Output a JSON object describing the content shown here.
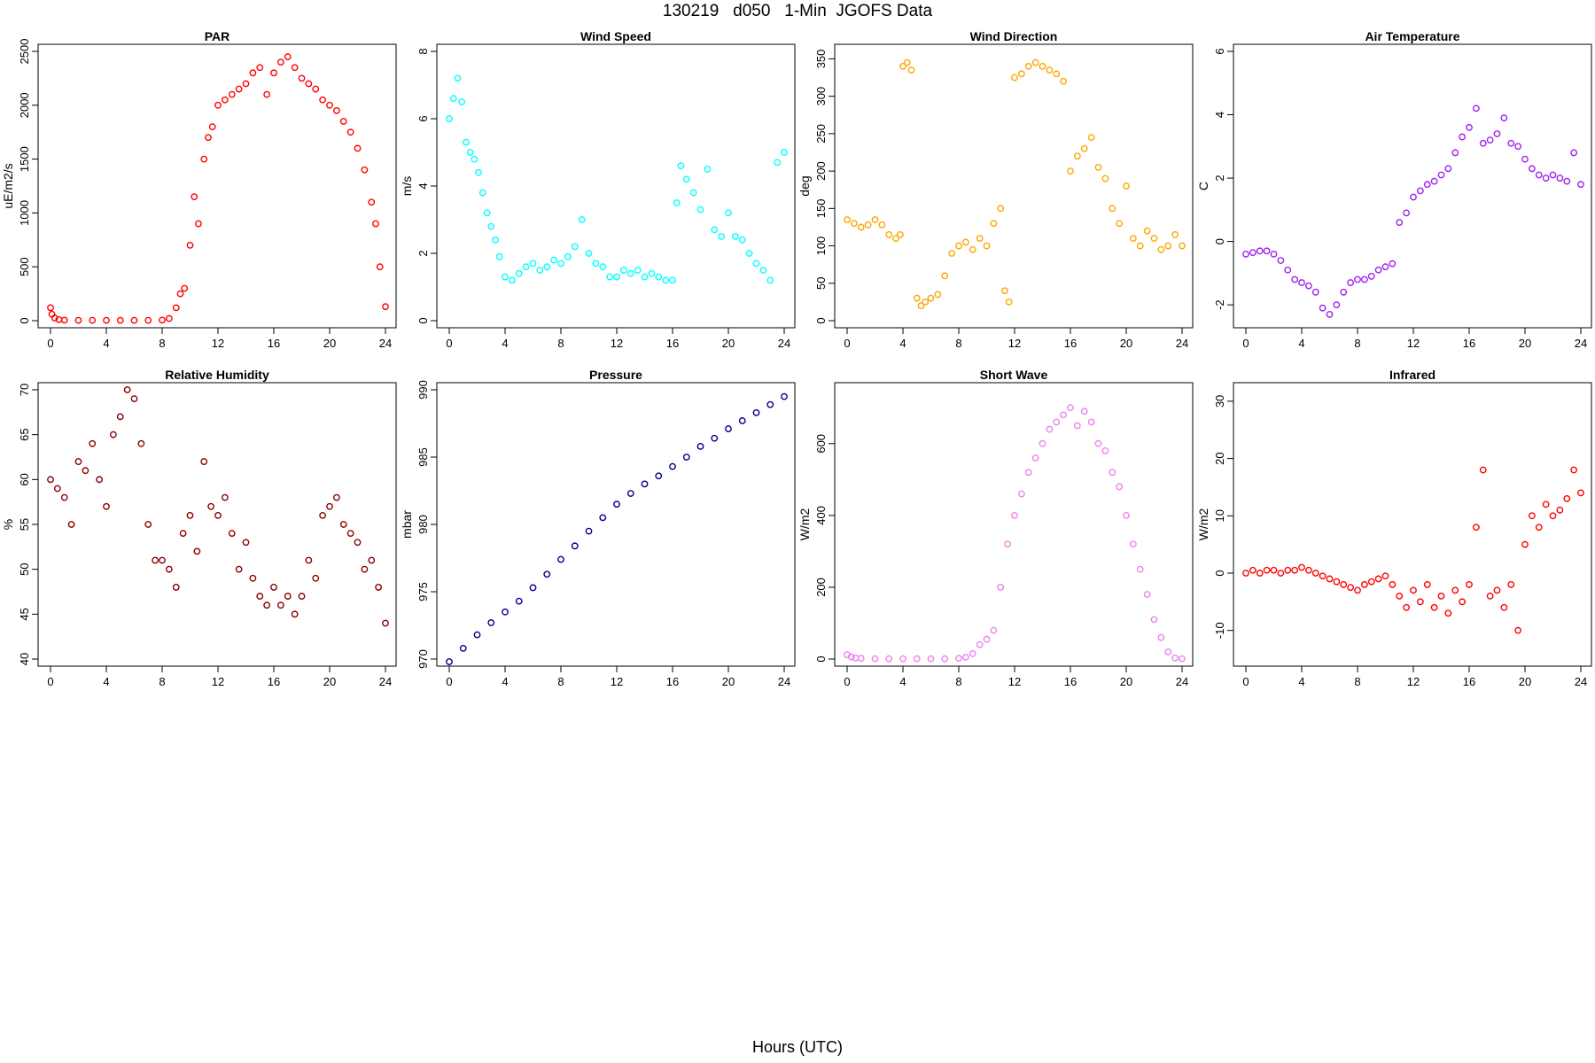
{
  "title": "130219   d050   1-Min  JGOFS Data",
  "xlabel": "Hours (UTC)",
  "chart_data": [
    {
      "type": "scatter",
      "title": "PAR",
      "ylabel": "uE/m2/s",
      "color": "#ff0000",
      "xlim": [
        0,
        24
      ],
      "ylim": [
        0,
        2500
      ],
      "xticks": [
        0,
        4,
        8,
        12,
        16,
        20,
        24
      ],
      "xtick_labels": [
        "0",
        "4",
        "8",
        "12",
        "16",
        "20",
        "24"
      ],
      "yticks": [
        0,
        500,
        1000,
        1500,
        2000,
        2500
      ],
      "ytick_labels": [
        "0",
        "500",
        "1000",
        "1500",
        "2000",
        "2500"
      ],
      "x": [
        0,
        0.1,
        0.3,
        0.6,
        1,
        2,
        3,
        4,
        5,
        6,
        7,
        8,
        8.5,
        9,
        9.3,
        9.6,
        10,
        10.3,
        10.6,
        11,
        11.3,
        11.6,
        12,
        12.5,
        13,
        13.5,
        14,
        14.5,
        15,
        15.5,
        16,
        16.5,
        17,
        17.5,
        18,
        18.5,
        19,
        19.5,
        20,
        20.5,
        21,
        21.5,
        22,
        22.5,
        23,
        23.3,
        23.6,
        24
      ],
      "y": [
        120,
        60,
        25,
        10,
        5,
        3,
        3,
        3,
        3,
        3,
        3,
        5,
        20,
        120,
        250,
        300,
        700,
        1150,
        900,
        1500,
        1700,
        1800,
        2000,
        2050,
        2100,
        2150,
        2200,
        2300,
        2350,
        2100,
        2300,
        2400,
        2450,
        2350,
        2250,
        2200,
        2150,
        2050,
        2000,
        1950,
        1850,
        1750,
        1600,
        1400,
        1100,
        900,
        500,
        130
      ]
    },
    {
      "type": "scatter",
      "title": "Wind Speed",
      "ylabel": "m/s",
      "color": "#00ffff",
      "xlim": [
        0,
        24
      ],
      "ylim": [
        0,
        8
      ],
      "xticks": [
        0,
        4,
        8,
        12,
        16,
        20,
        24
      ],
      "xtick_labels": [
        "0",
        "4",
        "8",
        "12",
        "16",
        "20",
        "24"
      ],
      "yticks": [
        0,
        2,
        4,
        6,
        8
      ],
      "ytick_labels": [
        "0",
        "2",
        "4",
        "6",
        "8"
      ],
      "x": [
        0,
        0.3,
        0.6,
        0.9,
        1.2,
        1.5,
        1.8,
        2.1,
        2.4,
        2.7,
        3,
        3.3,
        3.6,
        4,
        4.5,
        5,
        5.5,
        6,
        6.5,
        7,
        7.5,
        8,
        8.5,
        9,
        9.5,
        10,
        10.5,
        11,
        11.5,
        12,
        12.5,
        13,
        13.5,
        14,
        14.5,
        15,
        15.5,
        16,
        16.3,
        16.6,
        17,
        17.5,
        18,
        18.5,
        19,
        19.5,
        20,
        20.5,
        21,
        21.5,
        22,
        22.5,
        23,
        23.5,
        24
      ],
      "y": [
        6,
        6.6,
        7.2,
        6.5,
        5.3,
        5,
        4.8,
        4.4,
        3.8,
        3.2,
        2.8,
        2.4,
        1.9,
        1.3,
        1.2,
        1.4,
        1.6,
        1.7,
        1.5,
        1.6,
        1.8,
        1.7,
        1.9,
        2.2,
        3,
        2,
        1.7,
        1.6,
        1.3,
        1.3,
        1.5,
        1.4,
        1.5,
        1.3,
        1.4,
        1.3,
        1.2,
        1.2,
        3.5,
        4.6,
        4.2,
        3.8,
        3.3,
        4.5,
        2.7,
        2.5,
        3.2,
        2.5,
        2.4,
        2,
        1.7,
        1.5,
        1.2,
        4.7,
        5
      ]
    },
    {
      "type": "scatter",
      "title": "Wind Direction",
      "ylabel": "deg",
      "color": "#ffa500",
      "xlim": [
        0,
        24
      ],
      "ylim": [
        0,
        360
      ],
      "xticks": [
        0,
        4,
        8,
        12,
        16,
        20,
        24
      ],
      "xtick_labels": [
        "0",
        "4",
        "8",
        "12",
        "16",
        "20",
        "24"
      ],
      "yticks": [
        0,
        50,
        100,
        150,
        200,
        250,
        300,
        350
      ],
      "ytick_labels": [
        "0",
        "50",
        "100",
        "150",
        "200",
        "250",
        "300",
        "350"
      ],
      "x": [
        0,
        0.5,
        1,
        1.5,
        2,
        2.5,
        3,
        3.5,
        3.8,
        4,
        4.3,
        4.6,
        5,
        5.3,
        5.6,
        6,
        6.5,
        7,
        7.5,
        8,
        8.5,
        9,
        9.5,
        10,
        10.5,
        11,
        11.3,
        11.6,
        12,
        12.5,
        13,
        13.5,
        14,
        14.5,
        15,
        15.5,
        16,
        16.5,
        17,
        17.5,
        18,
        18.5,
        19,
        19.5,
        20,
        20.5,
        21,
        21.5,
        22,
        22.5,
        23,
        23.5,
        24
      ],
      "y": [
        135,
        130,
        125,
        128,
        135,
        128,
        115,
        110,
        115,
        340,
        345,
        335,
        30,
        20,
        25,
        30,
        35,
        60,
        90,
        100,
        105,
        95,
        110,
        100,
        130,
        150,
        40,
        25,
        325,
        330,
        340,
        345,
        340,
        335,
        330,
        320,
        200,
        220,
        230,
        245,
        205,
        190,
        150,
        130,
        180,
        110,
        100,
        120,
        110,
        95,
        100,
        115,
        100
      ]
    },
    {
      "type": "scatter",
      "title": "Air Temperature",
      "ylabel": "C",
      "color": "#a020f0",
      "xlim": [
        0,
        24
      ],
      "ylim": [
        -2.5,
        6
      ],
      "xticks": [
        0,
        4,
        8,
        12,
        16,
        20,
        24
      ],
      "xtick_labels": [
        "0",
        "4",
        "8",
        "12",
        "16",
        "20",
        "24"
      ],
      "yticks": [
        -2,
        0,
        2,
        4,
        6
      ],
      "ytick_labels": [
        "-2",
        "0",
        "2",
        "4",
        "6"
      ],
      "x": [
        0,
        0.5,
        1,
        1.5,
        2,
        2.5,
        3,
        3.5,
        4,
        4.5,
        5,
        5.5,
        6,
        6.5,
        7,
        7.5,
        8,
        8.5,
        9,
        9.5,
        10,
        10.5,
        11,
        11.5,
        12,
        12.5,
        13,
        13.5,
        14,
        14.5,
        15,
        15.5,
        16,
        16.5,
        17,
        17.5,
        18,
        18.5,
        19,
        19.5,
        20,
        20.5,
        21,
        21.5,
        22,
        22.5,
        23,
        23.5,
        24
      ],
      "y": [
        -0.4,
        -0.35,
        -0.3,
        -0.3,
        -0.4,
        -0.6,
        -0.9,
        -1.2,
        -1.3,
        -1.4,
        -1.6,
        -2.1,
        -2.3,
        -2.0,
        -1.6,
        -1.3,
        -1.2,
        -1.2,
        -1.1,
        -0.9,
        -0.8,
        -0.7,
        0.6,
        0.9,
        1.4,
        1.6,
        1.8,
        1.9,
        2.1,
        2.3,
        2.8,
        3.3,
        3.6,
        4.2,
        3.1,
        3.2,
        3.4,
        3.9,
        3.1,
        3.0,
        2.6,
        2.3,
        2.1,
        2.0,
        2.1,
        2.0,
        1.9,
        2.8,
        1.8
      ]
    },
    {
      "type": "scatter",
      "title": "Relative Humidity",
      "ylabel": "%",
      "color": "#8b0000",
      "xlim": [
        0,
        24
      ],
      "ylim": [
        40,
        70
      ],
      "xticks": [
        0,
        4,
        8,
        12,
        16,
        20,
        24
      ],
      "xtick_labels": [
        "0",
        "4",
        "8",
        "12",
        "16",
        "20",
        "24"
      ],
      "yticks": [
        40,
        45,
        50,
        55,
        60,
        65,
        70
      ],
      "ytick_labels": [
        "40",
        "45",
        "50",
        "55",
        "60",
        "65",
        "70"
      ],
      "x": [
        0,
        0.5,
        1,
        1.5,
        2,
        2.5,
        3,
        3.5,
        4,
        4.5,
        5,
        5.5,
        6,
        6.5,
        7,
        7.5,
        8,
        8.5,
        9,
        9.5,
        10,
        10.5,
        11,
        11.5,
        12,
        12.5,
        13,
        13.5,
        14,
        14.5,
        15,
        15.5,
        16,
        16.5,
        17,
        17.5,
        18,
        18.5,
        19,
        19.5,
        20,
        20.5,
        21,
        21.5,
        22,
        22.5,
        23,
        23.5,
        24
      ],
      "y": [
        60,
        59,
        58,
        55,
        62,
        61,
        64,
        60,
        57,
        65,
        67,
        70,
        69,
        64,
        55,
        51,
        51,
        50,
        48,
        54,
        56,
        52,
        62,
        57,
        56,
        58,
        54,
        50,
        53,
        49,
        47,
        46,
        48,
        46,
        47,
        45,
        47,
        51,
        49,
        56,
        57,
        58,
        55,
        54,
        53,
        50,
        51,
        48,
        44
      ]
    },
    {
      "type": "scatter",
      "title": "Pressure",
      "ylabel": "mbar",
      "color": "#00008b",
      "xlim": [
        0,
        24
      ],
      "ylim": [
        970,
        990
      ],
      "xticks": [
        0,
        4,
        8,
        12,
        16,
        20,
        24
      ],
      "xtick_labels": [
        "0",
        "4",
        "8",
        "12",
        "16",
        "20",
        "24"
      ],
      "yticks": [
        970,
        975,
        980,
        985,
        990
      ],
      "ytick_labels": [
        "970",
        "975",
        "980",
        "985",
        "990"
      ],
      "x": [
        0,
        1,
        2,
        3,
        4,
        5,
        6,
        7,
        8,
        9,
        10,
        11,
        12,
        13,
        14,
        15,
        16,
        17,
        18,
        19,
        20,
        21,
        22,
        23,
        24
      ],
      "y": [
        969.8,
        970.8,
        971.8,
        972.7,
        973.5,
        974.3,
        975.3,
        976.3,
        977.4,
        978.4,
        979.5,
        980.5,
        981.5,
        982.3,
        983,
        983.6,
        984.3,
        985,
        985.8,
        986.4,
        987.1,
        987.7,
        988.3,
        988.9,
        989.5
      ]
    },
    {
      "type": "scatter",
      "title": "Short Wave",
      "ylabel": "W/m2",
      "color": "#ee82ee",
      "xlim": [
        0,
        24
      ],
      "ylim": [
        0,
        750
      ],
      "xticks": [
        0,
        4,
        8,
        12,
        16,
        20,
        24
      ],
      "xtick_labels": [
        "0",
        "4",
        "8",
        "12",
        "16",
        "20",
        "24"
      ],
      "yticks": [
        0,
        200,
        400,
        600
      ],
      "ytick_labels": [
        "0",
        "200",
        "400",
        "600"
      ],
      "x": [
        0,
        0.3,
        0.6,
        1,
        2,
        3,
        4,
        5,
        6,
        7,
        8,
        8.5,
        9,
        9.5,
        10,
        10.5,
        11,
        11.5,
        12,
        12.5,
        13,
        13.5,
        14,
        14.5,
        15,
        15.5,
        16,
        16.5,
        17,
        17.5,
        18,
        18.5,
        19,
        19.5,
        20,
        20.5,
        21,
        21.5,
        22,
        22.5,
        23,
        23.5,
        24
      ],
      "y": [
        12,
        6,
        3,
        2,
        1,
        1,
        1,
        1,
        1,
        1,
        2,
        5,
        15,
        40,
        55,
        80,
        200,
        320,
        400,
        460,
        520,
        560,
        600,
        640,
        660,
        680,
        700,
        650,
        690,
        660,
        600,
        580,
        520,
        480,
        400,
        320,
        250,
        180,
        110,
        60,
        20,
        3,
        1
      ]
    },
    {
      "type": "scatter",
      "title": "Infrared",
      "ylabel": "W/m2",
      "color": "#ff0000",
      "xlim": [
        0,
        24
      ],
      "ylim": [
        -15,
        32
      ],
      "xticks": [
        0,
        4,
        8,
        12,
        16,
        20,
        24
      ],
      "xtick_labels": [
        "0",
        "4",
        "8",
        "12",
        "16",
        "20",
        "24"
      ],
      "yticks": [
        -10,
        0,
        10,
        20,
        30
      ],
      "ytick_labels": [
        "-10",
        "0",
        "10",
        "20",
        "30"
      ],
      "x": [
        0,
        0.5,
        1,
        1.5,
        2,
        2.5,
        3,
        3.5,
        4,
        4.5,
        5,
        5.5,
        6,
        6.5,
        7,
        7.5,
        8,
        8.5,
        9,
        9.5,
        10,
        10.5,
        11,
        11.5,
        12,
        12.5,
        13,
        13.5,
        14,
        14.5,
        15,
        15.5,
        16,
        16.5,
        17,
        17.5,
        18,
        18.5,
        19,
        19.5,
        20,
        20.5,
        21,
        21.5,
        22,
        22.5,
        23,
        23.5,
        24
      ],
      "y": [
        0,
        0.5,
        0,
        0.5,
        0.5,
        0,
        0.5,
        0.5,
        1,
        0.5,
        0,
        -0.5,
        -1,
        -1.5,
        -2,
        -2.5,
        -3,
        -2,
        -1.5,
        -1,
        -0.5,
        -2,
        -4,
        -6,
        -3,
        -5,
        -2,
        -6,
        -4,
        -7,
        -3,
        -5,
        -2,
        8,
        18,
        -4,
        -3,
        -6,
        -2,
        -10,
        5,
        10,
        8,
        12,
        10,
        11,
        13,
        18,
        14
      ]
    }
  ]
}
